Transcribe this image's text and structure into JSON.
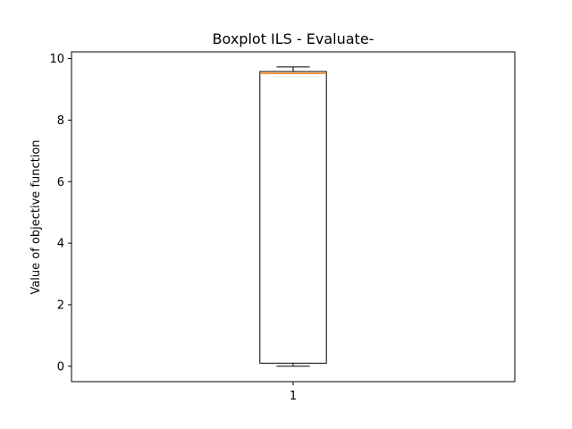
{
  "chart_data": {
    "type": "boxplot",
    "title": "Boxplot ILS - Evaluate-",
    "xlabel": "",
    "ylabel": "Value of objective function",
    "categories": [
      "1"
    ],
    "boxes": [
      {
        "category": "1",
        "whisker_low": 0.0,
        "q1": 0.1,
        "median": 9.52,
        "q3": 9.58,
        "whisker_high": 9.73
      }
    ],
    "xlim": [
      0.5,
      1.5
    ],
    "ylim": [
      -0.5,
      10.22
    ],
    "yticks": [
      0,
      2,
      4,
      6,
      8,
      10
    ],
    "grid": false,
    "colors": {
      "box": "#000000",
      "median": "#ff7f0e"
    }
  }
}
